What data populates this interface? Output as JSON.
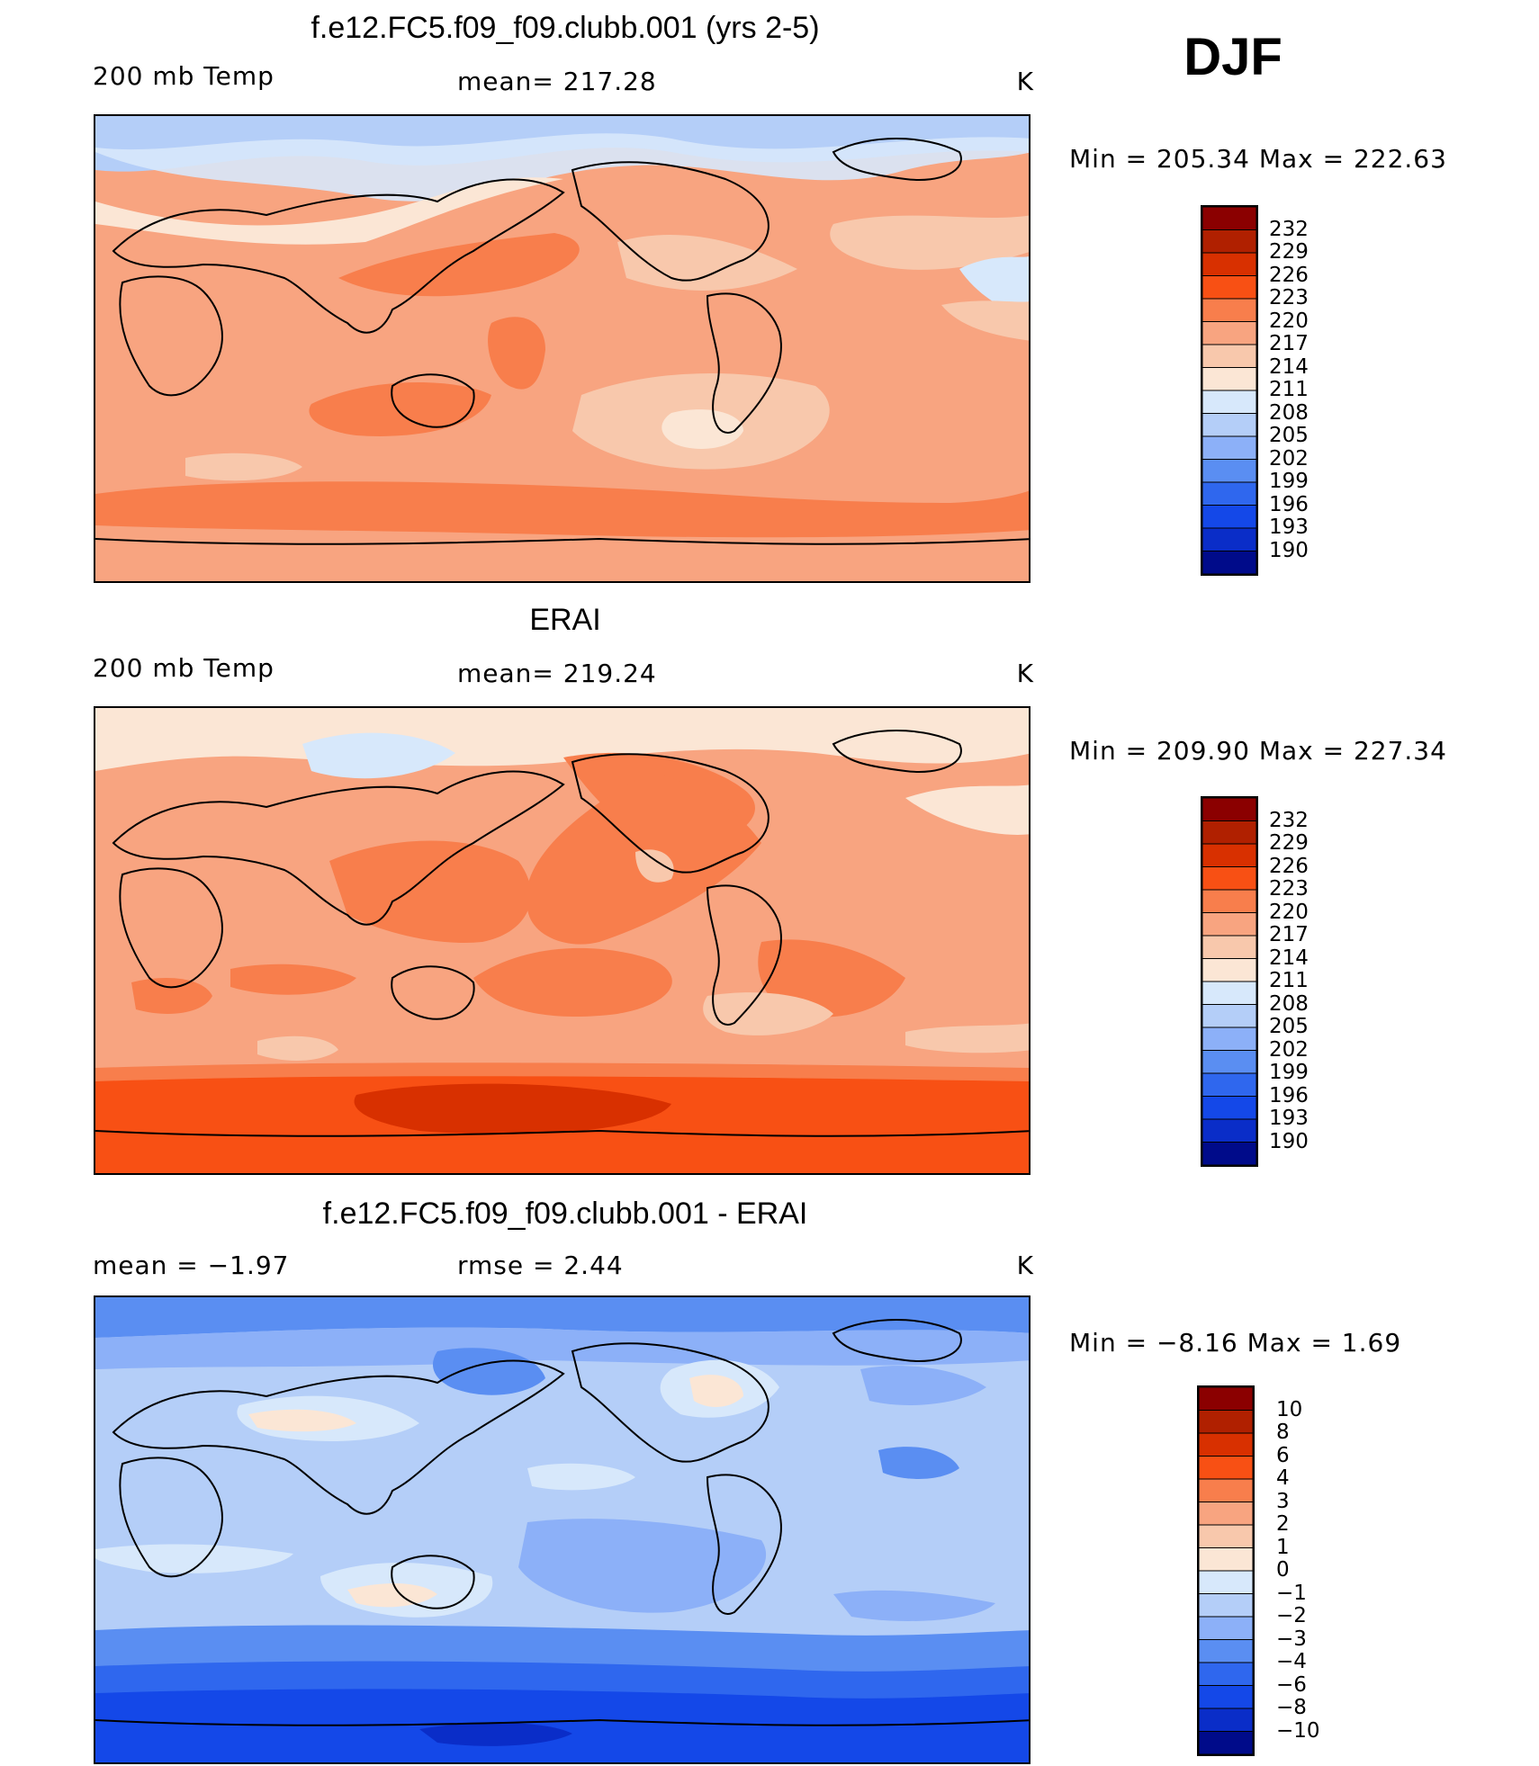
{
  "season": "DJF",
  "colors": {
    "abs_scale": [
      "#8b0000",
      "#b02000",
      "#d83000",
      "#f85014",
      "#f87e4c",
      "#f8a480",
      "#f8c8ac",
      "#fbe6d5",
      "#d7e8fb",
      "#b4cef8",
      "#8cb0f8",
      "#5a8ef2",
      "#2f67ee",
      "#1448e8",
      "#0a2dc8",
      "#000b8a"
    ],
    "diff_scale": [
      "#8b0000",
      "#b02000",
      "#d83000",
      "#f85014",
      "#f87e4c",
      "#f8a480",
      "#f8c8ac",
      "#fbe6d5",
      "#d7e8fb",
      "#b4cef8",
      "#8cb0f8",
      "#5a8ef2",
      "#2f67ee",
      "#1448e8",
      "#0a2dc8",
      "#000b8a"
    ]
  },
  "panels": [
    {
      "title": "f.e12.FC5.f09_f09.clubb.001 (yrs 2-5)",
      "left_label": "200 mb Temp",
      "center_label": "mean= 217.28",
      "units": "K",
      "minmax": "Min = 205.34 Max = 222.63",
      "legend_labels": [
        "232",
        "229",
        "226",
        "223",
        "220",
        "217",
        "214",
        "211",
        "208",
        "205",
        "202",
        "199",
        "196",
        "193",
        "190"
      ]
    },
    {
      "title": "ERAI",
      "left_label": "200 mb Temp",
      "center_label": "mean= 219.24",
      "units": "K",
      "minmax": "Min = 209.90 Max = 227.34",
      "legend_labels": [
        "232",
        "229",
        "226",
        "223",
        "220",
        "217",
        "214",
        "211",
        "208",
        "205",
        "202",
        "199",
        "196",
        "193",
        "190"
      ]
    },
    {
      "title": "f.e12.FC5.f09_f09.clubb.001 - ERAI",
      "left_label": "mean =   −1.97",
      "center_label": "rmse =    2.44",
      "units": "K",
      "minmax": "Min =   −8.16 Max =     1.69",
      "legend_labels": [
        "10",
        "8",
        "6",
        "4",
        "3",
        "2",
        "1",
        "0",
        "−1",
        "−2",
        "−3",
        "−4",
        "−6",
        "−8",
        "−10"
      ]
    }
  ]
}
